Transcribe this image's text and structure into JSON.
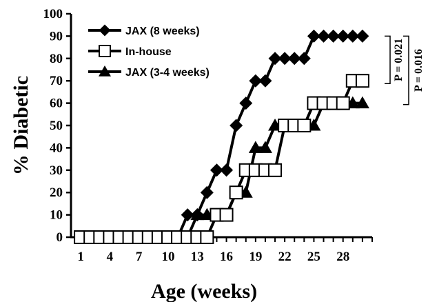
{
  "chart_data": {
    "type": "line",
    "xlabel": "Age (weeks)",
    "ylabel": "% Diabetic",
    "xlim": [
      0,
      31
    ],
    "ylim": [
      0,
      100
    ],
    "x_ticks": [
      1,
      4,
      7,
      10,
      13,
      16,
      19,
      22,
      25,
      28
    ],
    "y_ticks": [
      0,
      10,
      20,
      30,
      40,
      50,
      60,
      70,
      80,
      90,
      100
    ],
    "legend_position": "top-left",
    "series": [
      {
        "name": "JAX (8 weeks)",
        "marker": "diamond",
        "x": [
          1,
          2,
          3,
          4,
          5,
          6,
          7,
          8,
          9,
          10,
          11,
          12,
          13,
          14,
          15,
          16,
          17,
          18,
          19,
          20,
          21,
          22,
          23,
          24,
          25,
          26,
          27,
          28,
          29,
          30
        ],
        "y": [
          0,
          0,
          0,
          0,
          0,
          0,
          0,
          0,
          0,
          0,
          0,
          10,
          10,
          20,
          30,
          30,
          50,
          60,
          70,
          70,
          80,
          80,
          80,
          80,
          90,
          90,
          90,
          90,
          90,
          90
        ]
      },
      {
        "name": "In-house",
        "marker": "square-open",
        "x": [
          1,
          2,
          3,
          4,
          5,
          6,
          7,
          8,
          9,
          10,
          11,
          12,
          13,
          14,
          15,
          16,
          17,
          18,
          19,
          20,
          21,
          22,
          23,
          24,
          25,
          26,
          27,
          28,
          29,
          30
        ],
        "y": [
          0,
          0,
          0,
          0,
          0,
          0,
          0,
          0,
          0,
          0,
          0,
          0,
          0,
          0,
          10,
          10,
          20,
          30,
          30,
          30,
          30,
          50,
          50,
          50,
          60,
          60,
          60,
          60,
          70,
          70
        ]
      },
      {
        "name": "JAX (3-4 weeks)",
        "marker": "triangle",
        "x": [
          1,
          2,
          3,
          4,
          5,
          6,
          7,
          8,
          9,
          10,
          11,
          12,
          13,
          14,
          15,
          16,
          17,
          18,
          19,
          20,
          21,
          22,
          23,
          24,
          25,
          26,
          27,
          28,
          29,
          30
        ],
        "y": [
          0,
          0,
          0,
          0,
          0,
          0,
          0,
          0,
          0,
          0,
          0,
          0,
          10,
          10,
          10,
          10,
          20,
          20,
          40,
          40,
          50,
          50,
          50,
          50,
          50,
          60,
          60,
          60,
          60,
          60
        ]
      }
    ],
    "annotations": [
      {
        "text": "P = 0.021",
        "span": [
          "JAX (8 weeks)",
          "In-house"
        ]
      },
      {
        "text": "P = 0.016",
        "span": [
          "JAX (8 weeks)",
          "JAX (3-4 weeks)"
        ]
      }
    ]
  }
}
